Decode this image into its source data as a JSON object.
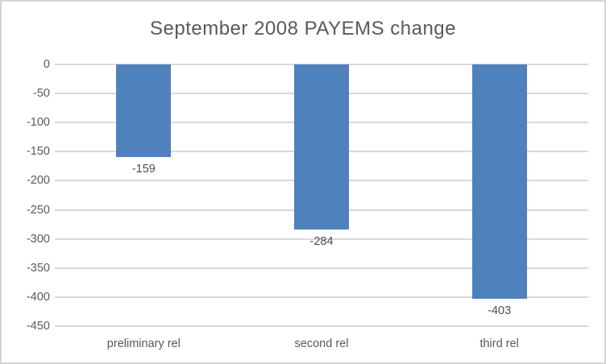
{
  "chart_data": {
    "type": "bar",
    "title": "September 2008 PAYEMS change",
    "categories": [
      "preliminary rel",
      "second rel",
      "third rel"
    ],
    "values": [
      -159,
      -284,
      -403
    ],
    "data_labels": [
      "-159",
      "-284",
      "-403"
    ],
    "ylim": [
      -450,
      0
    ],
    "yticks": [
      0,
      -50,
      -100,
      -150,
      -200,
      -250,
      -300,
      -350,
      -400,
      -450
    ],
    "ytick_labels": [
      "0",
      "-50",
      "-100",
      "-150",
      "-200",
      "-250",
      "-300",
      "-350",
      "-400",
      "-450"
    ],
    "grid": true,
    "legend": "none",
    "colors": {
      "bar": "#4f81bd",
      "gridline": "#d9d9d9",
      "axis_text": "#595959",
      "title_text": "#595959",
      "data_label_text": "#4d4d4d",
      "border": "#d4d4d4",
      "background": "#ffffff"
    }
  }
}
